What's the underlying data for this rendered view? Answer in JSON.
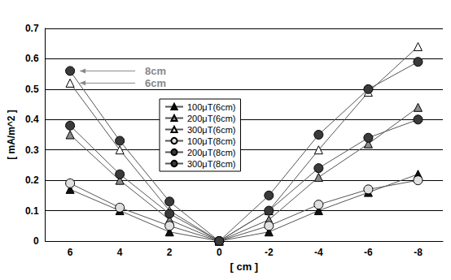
{
  "chart_data": {
    "type": "line",
    "x_label": "[ cm ]",
    "y_label": "[ mA/m^2 ]",
    "categories": [
      "6",
      "4",
      "2",
      "0",
      "-2",
      "-4",
      "-6",
      "-8"
    ],
    "ylim": [
      0,
      0.7
    ],
    "yticks": [
      0,
      0.1,
      0.2,
      0.3,
      0.4,
      0.5,
      0.6,
      0.7
    ],
    "grid": true,
    "legend": "center",
    "series": [
      {
        "name": "100μT(6cm)",
        "color": "#111111",
        "marker": "triangle",
        "values": [
          0.17,
          0.1,
          0.03,
          0,
          0.03,
          0.1,
          0.16,
          0.22
        ]
      },
      {
        "name": "200μT(6cm)",
        "color": "#8c8c8c",
        "marker": "triangle",
        "values": [
          0.35,
          0.2,
          0.07,
          0,
          0.07,
          0.21,
          0.32,
          0.44
        ]
      },
      {
        "name": "300μT(6cm)",
        "color": "#ffffff",
        "marker": "triangle",
        "values": [
          0.52,
          0.3,
          0.1,
          0,
          0.1,
          0.3,
          0.49,
          0.64
        ]
      },
      {
        "name": "100μT(8cm)",
        "color": "#e0e0e0",
        "marker": "circle",
        "values": [
          0.19,
          0.11,
          0.05,
          0,
          0.05,
          0.12,
          0.17,
          0.2
        ]
      },
      {
        "name": "200μT(8cm)",
        "color": "#3a3a3a",
        "marker": "circle",
        "values": [
          0.38,
          0.22,
          0.09,
          0,
          0.1,
          0.24,
          0.34,
          0.4
        ]
      },
      {
        "name": "300μT(8cm)",
        "color": "#3a3a3a",
        "marker": "circle",
        "values": [
          0.56,
          0.33,
          0.13,
          0,
          0.15,
          0.35,
          0.5,
          0.59
        ]
      }
    ],
    "annotations": [
      {
        "text": "8cm",
        "x": "6",
        "y": 0.56
      },
      {
        "text": "6cm",
        "x": "6",
        "y": 0.52
      }
    ]
  }
}
